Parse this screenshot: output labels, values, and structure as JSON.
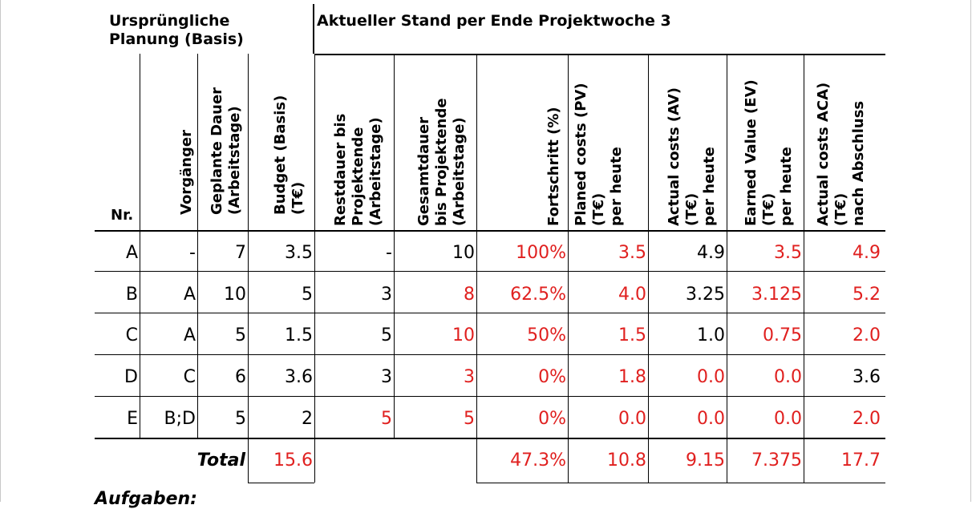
{
  "titles": {
    "basis": "Ursprüngliche\nPlanung (Basis)",
    "current": "Aktueller Stand per Ende Projektwoche 3"
  },
  "headers": {
    "nr": "Nr.",
    "vorgaenger": "Vorgänger",
    "geplante_dauer": "Geplante Dauer\n(Arbeitstage)",
    "budget": "Budget (Basis)\n(T€)",
    "restdauer": "Restdauer bis\nProjektende\n(Arbeitstage)",
    "gesamtdauer": "Gesamtdauer\nbis Projektende\n(Arbeitstage)",
    "fortschritt": "Fortschritt (%)",
    "pv": "Planed costs (PV)\n(T€)\nper heute",
    "av": "Actual costs (AV)\n(T€)\nper heute",
    "ev": "Earned Value (EV)\n(T€)\nper heute",
    "aca": "Actual costs ACA)\n(T€)\nnach Abschluss"
  },
  "columns": [
    "nr",
    "vorgaenger",
    "geplante_dauer",
    "budget",
    "restdauer",
    "gesamtdauer",
    "fortschritt",
    "pv",
    "av",
    "ev",
    "aca"
  ],
  "rows": [
    {
      "nr": "A",
      "vorgaenger": "-",
      "geplante_dauer": "7",
      "budget": "3.5",
      "restdauer": "-",
      "gesamtdauer": "10",
      "fortschritt": "100%",
      "pv": "3.5",
      "av": "4.9",
      "ev": "3.5",
      "aca": "4.9"
    },
    {
      "nr": "B",
      "vorgaenger": "A",
      "geplante_dauer": "10",
      "budget": "5",
      "restdauer": "3",
      "gesamtdauer": "8",
      "fortschritt": "62.5%",
      "pv": "4.0",
      "av": "3.25",
      "ev": "3.125",
      "aca": "5.2"
    },
    {
      "nr": "C",
      "vorgaenger": "A",
      "geplante_dauer": "5",
      "budget": "1.5",
      "restdauer": "5",
      "gesamtdauer": "10",
      "fortschritt": "50%",
      "pv": "1.5",
      "av": "1.0",
      "ev": "0.75",
      "aca": "2.0"
    },
    {
      "nr": "D",
      "vorgaenger": "C",
      "geplante_dauer": "6",
      "budget": "3.6",
      "restdauer": "3",
      "gesamtdauer": "3",
      "fortschritt": "0%",
      "pv": "1.8",
      "av": "0.0",
      "ev": "0.0",
      "aca": "3.6"
    },
    {
      "nr": "E",
      "vorgaenger": "B;D",
      "geplante_dauer": "5",
      "budget": "2",
      "restdauer": "5",
      "gesamtdauer": "5",
      "fortschritt": "0%",
      "pv": "0.0",
      "av": "0.0",
      "ev": "0.0",
      "aca": "2.0"
    }
  ],
  "red_cells": [
    {
      "row": 0,
      "cols": [
        "fortschritt",
        "pv",
        "ev",
        "aca"
      ]
    },
    {
      "row": 1,
      "cols": [
        "gesamtdauer",
        "fortschritt",
        "pv",
        "ev",
        "aca"
      ]
    },
    {
      "row": 2,
      "cols": [
        "gesamtdauer",
        "fortschritt",
        "pv",
        "ev",
        "aca"
      ]
    },
    {
      "row": 3,
      "cols": [
        "gesamtdauer",
        "fortschritt",
        "pv",
        "av",
        "ev"
      ]
    },
    {
      "row": 4,
      "cols": [
        "restdauer",
        "gesamtdauer",
        "fortschritt",
        "pv",
        "av",
        "ev",
        "aca"
      ]
    }
  ],
  "total": {
    "label": "Total",
    "budget": "15.6",
    "fortschritt": "47.3%",
    "pv": "10.8",
    "av": "9.15",
    "ev": "7.375",
    "aca": "17.7"
  },
  "footer_text": "Aufgaben:",
  "colors": {
    "highlight": "#e0201f",
    "text": "#000000"
  }
}
